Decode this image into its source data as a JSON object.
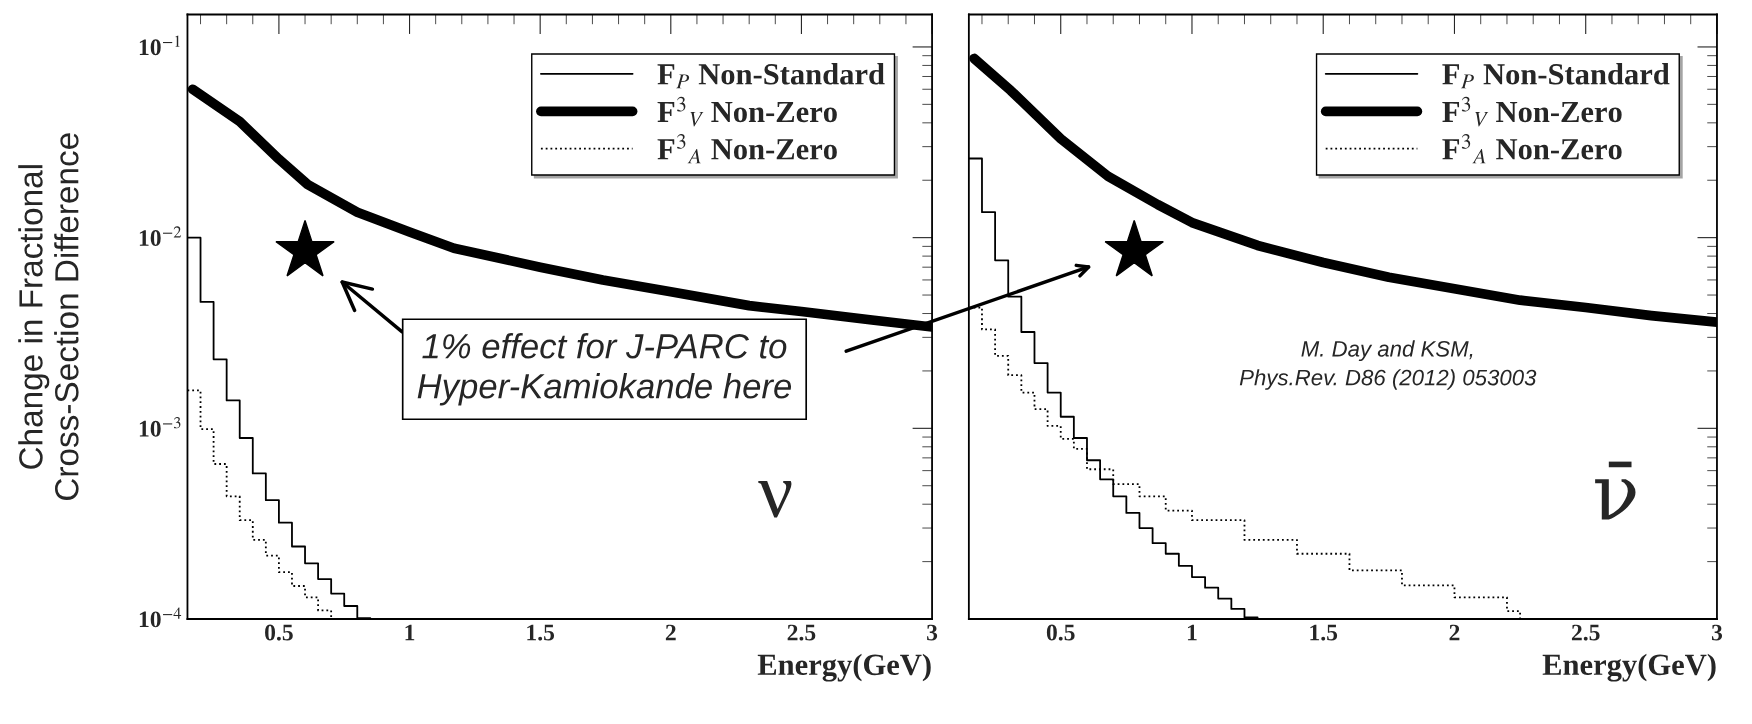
{
  "chart_data": [
    {
      "type": "step",
      "xlabel": "Energy(GeV)",
      "ylabel": "Change in Fractional\nCross-Section Difference",
      "log": "y",
      "xlim": [
        0.15,
        3
      ],
      "xticks": [
        0.5,
        1,
        1.5,
        2,
        2.5,
        3
      ],
      "ylim": [
        0.0001,
        0.148
      ],
      "yticks": [
        {
          "value": 0.0001,
          "label": "10$^{−4}$"
        },
        {
          "value": 0.001,
          "label": "10$^{−3}$"
        },
        {
          "value": 0.01,
          "label": "10$^{−2}$"
        },
        {
          "value": 0.1,
          "label": "10$^{−1}$"
        }
      ],
      "legend": "top right",
      "grid": false,
      "series": [
        {
          "name": "F$_{P}$ Non-Standard",
          "color": "#000000",
          "line_style": "solid",
          "x": [
            0.15,
            0.2,
            0.25,
            0.3,
            0.35,
            0.4,
            0.45,
            0.5,
            0.55,
            0.6,
            0.65,
            0.7,
            0.75,
            0.8,
            0.85
          ],
          "values": [
            0.01,
            0.0046,
            0.0023,
            0.0014,
            0.00089,
            0.00058,
            0.00042,
            0.00032,
            0.00024,
            0.000196,
            0.000162,
            0.000136,
            0.000117,
            0.000101,
            0.000101
          ]
        },
        {
          "name": "F$^{3}$$_{V}$ Non-Zero",
          "color": "#000000",
          "type": "line",
          "line_style": "solid",
          "x": [
            0.17,
            0.35,
            0.5,
            0.61,
            0.8,
            1.0,
            1.17,
            1.5,
            1.74,
            2.0,
            2.3,
            2.5,
            2.77,
            3.0
          ],
          "values": [
            0.06,
            0.0406,
            0.0258,
            0.019,
            0.0136,
            0.0107,
            0.0088,
            0.007,
            0.006,
            0.0052,
            0.0044,
            0.0041,
            0.0037,
            0.0034
          ]
        },
        {
          "name": "F$^{3}$$_{A}$ Non-Zero",
          "color": "#000000",
          "line_style": "dotted",
          "x": [
            0.15,
            0.2,
            0.25,
            0.3,
            0.35,
            0.4,
            0.45,
            0.5,
            0.55,
            0.6,
            0.65,
            0.7,
            0.75
          ],
          "values": [
            0.00158,
            0.00099,
            0.00065,
            0.00044,
            0.00033,
            0.00026,
            0.000215,
            0.000176,
            0.000149,
            0.00013,
            0.000111,
            0.0001,
            0.0001
          ]
        }
      ],
      "annotations": [
        "1% effect for J-PARC to\nHyper-Kamiokande here",
        "ν"
      ]
    },
    {
      "type": "step",
      "xlabel": "Energy(GeV)",
      "log": "y",
      "xlim": [
        0.15,
        3
      ],
      "xticks": [
        0.5,
        1,
        1.5,
        2,
        2.5,
        3
      ],
      "ylim": [
        0.0001,
        0.148
      ],
      "yticks": [
        {
          "value": 0.0001,
          "label": null
        },
        {
          "value": 0.001,
          "label": null
        },
        {
          "value": 0.01,
          "label": null
        },
        {
          "value": 0.1,
          "label": null
        }
      ],
      "tick_labels": "x",
      "legend": "top right",
      "grid": false,
      "series": [
        {
          "name": "F$_{P}$ Non-Standard",
          "color": "#000000",
          "line_style": "solid",
          "x": [
            0.15,
            0.2,
            0.25,
            0.3,
            0.35,
            0.4,
            0.45,
            0.5,
            0.55,
            0.6,
            0.65,
            0.7,
            0.75,
            0.8,
            0.85,
            0.9,
            0.95,
            1.0,
            1.05,
            1.1,
            1.15,
            1.2,
            1.25
          ],
          "values": [
            0.026,
            0.0136,
            0.0076,
            0.0049,
            0.0032,
            0.0022,
            0.00154,
            0.00115,
            0.00089,
            0.00068,
            0.00054,
            0.00044,
            0.00036,
            0.0003,
            0.00025,
            0.00022,
            0.00019,
            0.000166,
            0.000146,
            0.000128,
            0.000113,
            0.000102,
            0.000102
          ]
        },
        {
          "name": "F$^{3}$$_{V}$ Non-Zero",
          "color": "#000000",
          "type": "line",
          "line_style": "solid",
          "x": [
            0.17,
            0.31,
            0.5,
            0.68,
            0.87,
            1.0,
            1.25,
            1.5,
            1.75,
            2.0,
            2.25,
            2.5,
            2.75,
            3.0
          ],
          "values": [
            0.087,
            0.059,
            0.033,
            0.021,
            0.0149,
            0.012,
            0.0091,
            0.0074,
            0.0062,
            0.0054,
            0.0047,
            0.0043,
            0.0039,
            0.0036
          ]
        },
        {
          "name": "F$^{3}$$_{A}$ Non-Zero",
          "color": "#000000",
          "line_style": "dotted",
          "x": [
            0.15,
            0.2,
            0.25,
            0.3,
            0.35,
            0.4,
            0.45,
            0.5,
            0.55,
            0.6,
            0.7,
            0.8,
            0.9,
            1.0,
            1.2,
            1.4,
            1.6,
            1.8,
            2.0,
            2.2,
            2.25
          ],
          "values": [
            0.0043,
            0.0033,
            0.0024,
            0.0019,
            0.00154,
            0.00126,
            0.00103,
            0.00088,
            0.00078,
            0.00061,
            0.00051,
            0.00044,
            0.00037,
            0.00033,
            0.00026,
            0.00022,
            0.00018,
            0.00015,
            0.00013,
            0.00011,
            0.0001
          ]
        }
      ],
      "annotations": [
        "M. Day and KSM,\nPhys.Rev. D86 (2012) 053003",
        "ν̄"
      ]
    }
  ]
}
